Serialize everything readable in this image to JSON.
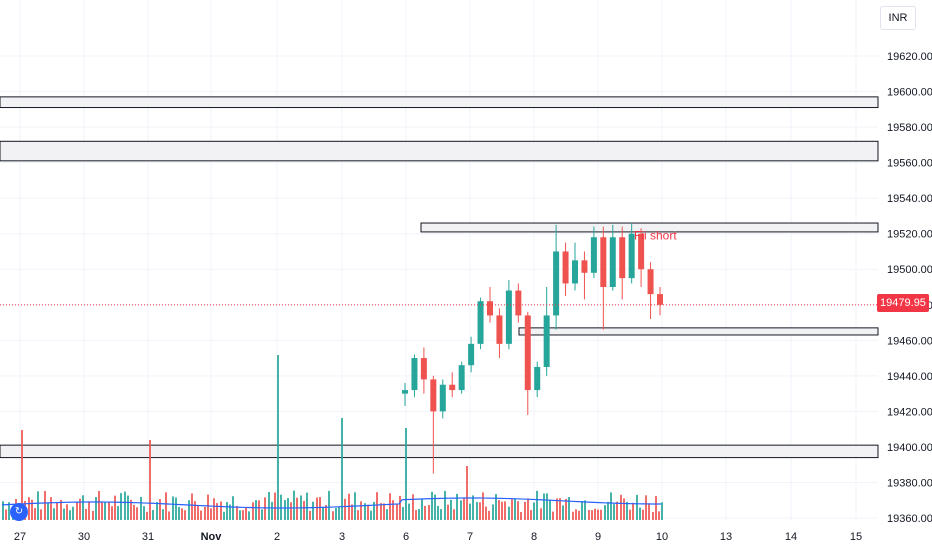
{
  "currency_button": "INR",
  "logo_glyph": "↻",
  "chart_data": {
    "type": "candlestick",
    "symbol_currency": "INR",
    "last_price": "19479.95",
    "annotation": "Fii short",
    "y_axis": {
      "ticks": [
        "19360.00",
        "19380.00",
        "19400.00",
        "19420.00",
        "19440.00",
        "19460.00",
        "19480.00",
        "19500.00",
        "19520.00",
        "19540.00",
        "19560.00",
        "19580.00",
        "19600.00",
        "19620.00"
      ],
      "range": [
        19354,
        19634
      ]
    },
    "x_axis": {
      "ticks": [
        "27",
        "30",
        "31",
        "Nov",
        "2",
        "3",
        "6",
        "7",
        "8",
        "9",
        "10",
        "13",
        "14",
        "15"
      ]
    },
    "zones": [
      {
        "from": 19591,
        "to": 19597,
        "span": "full"
      },
      {
        "from": 19561,
        "to": 19572,
        "span": "full"
      },
      {
        "from": 19521,
        "to": 19526,
        "span": "partial"
      },
      {
        "from": 19463,
        "to": 19467,
        "span": "partial"
      },
      {
        "from": 19394,
        "to": 19401,
        "span": "full"
      }
    ],
    "candles": [
      {
        "o": 19430,
        "h": 19436,
        "l": 19423,
        "c": 19432
      },
      {
        "o": 19432,
        "h": 19452,
        "l": 19428,
        "c": 19450
      },
      {
        "o": 19450,
        "h": 19456,
        "l": 19430,
        "c": 19438
      },
      {
        "o": 19438,
        "h": 19440,
        "l": 19385,
        "c": 19420
      },
      {
        "o": 19420,
        "h": 19438,
        "l": 19416,
        "c": 19435
      },
      {
        "o": 19435,
        "h": 19442,
        "l": 19428,
        "c": 19432
      },
      {
        "o": 19432,
        "h": 19448,
        "l": 19430,
        "c": 19446
      },
      {
        "o": 19446,
        "h": 19462,
        "l": 19442,
        "c": 19458
      },
      {
        "o": 19458,
        "h": 19484,
        "l": 19455,
        "c": 19482
      },
      {
        "o": 19482,
        "h": 19490,
        "l": 19470,
        "c": 19474
      },
      {
        "o": 19474,
        "h": 19478,
        "l": 19450,
        "c": 19458
      },
      {
        "o": 19458,
        "h": 19494,
        "l": 19455,
        "c": 19488
      },
      {
        "o": 19488,
        "h": 19492,
        "l": 19470,
        "c": 19474
      },
      {
        "o": 19474,
        "h": 19476,
        "l": 19418,
        "c": 19432
      },
      {
        "o": 19432,
        "h": 19448,
        "l": 19428,
        "c": 19445
      },
      {
        "o": 19445,
        "h": 19490,
        "l": 19440,
        "c": 19474
      },
      {
        "o": 19474,
        "h": 19525,
        "l": 19466,
        "c": 19510
      },
      {
        "o": 19510,
        "h": 19515,
        "l": 19485,
        "c": 19492
      },
      {
        "o": 19492,
        "h": 19515,
        "l": 19488,
        "c": 19505
      },
      {
        "o": 19505,
        "h": 19510,
        "l": 19483,
        "c": 19498
      },
      {
        "o": 19498,
        "h": 19524,
        "l": 19495,
        "c": 19518
      },
      {
        "o": 19518,
        "h": 19524,
        "l": 19466,
        "c": 19490
      },
      {
        "o": 19490,
        "h": 19525,
        "l": 19488,
        "c": 19518
      },
      {
        "o": 19518,
        "h": 19524,
        "l": 19483,
        "c": 19495
      },
      {
        "o": 19495,
        "h": 19526,
        "l": 19492,
        "c": 19520
      },
      {
        "o": 19520,
        "h": 19523,
        "l": 19490,
        "c": 19500
      },
      {
        "o": 19500,
        "h": 19504,
        "l": 19472,
        "c": 19486
      },
      {
        "o": 19486,
        "h": 19490,
        "l": 19474,
        "c": 19480
      }
    ],
    "volume": {
      "type": "bar",
      "has_moving_average": true
    }
  }
}
